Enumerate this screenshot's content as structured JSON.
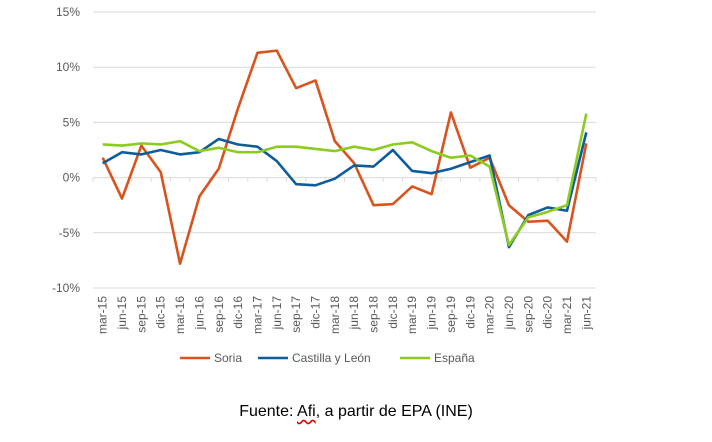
{
  "chart_data": {
    "type": "line",
    "title": "",
    "xlabel": "",
    "ylabel": "",
    "categories": [
      "mar-15",
      "jun-15",
      "sep-15",
      "dic-15",
      "mar-16",
      "jun-16",
      "sep-16",
      "dic-16",
      "mar-17",
      "jun-17",
      "sep-17",
      "dic-17",
      "mar-18",
      "jun-18",
      "sep-18",
      "dic-18",
      "mar-19",
      "jun-19",
      "sep-19",
      "dic-19",
      "mar-20",
      "jun-20",
      "sep-20",
      "dic-20",
      "mar-21",
      "jun-21"
    ],
    "ylim": [
      -10,
      15
    ],
    "yticks": [
      -10,
      -5,
      0,
      5,
      10,
      15
    ],
    "ytick_labels": [
      "-10%",
      "-5%",
      "0%",
      "5%",
      "10%",
      "15%"
    ],
    "grid": true,
    "legend_position": "bottom",
    "series": [
      {
        "name": "Soria",
        "color": "#D9531E",
        "values": [
          1.8,
          -1.9,
          2.9,
          0.5,
          -7.8,
          -1.7,
          0.8,
          6.3,
          11.3,
          11.5,
          8.1,
          8.8,
          3.3,
          1.3,
          -2.5,
          -2.4,
          -0.8,
          -1.5,
          5.9,
          0.9,
          1.8,
          -2.5,
          -4.0,
          -3.9,
          -5.8,
          3.1
        ]
      },
      {
        "name": "Castilla y León",
        "color": "#0F5C9A",
        "values": [
          1.3,
          2.3,
          2.1,
          2.5,
          2.1,
          2.3,
          3.5,
          3.0,
          2.8,
          1.5,
          -0.6,
          -0.7,
          -0.1,
          1.1,
          1.0,
          2.5,
          0.6,
          0.4,
          0.8,
          1.4,
          2.0,
          -6.3,
          -3.4,
          -2.7,
          -3.0,
          4.1
        ]
      },
      {
        "name": "España",
        "color": "#8CCB1F",
        "values": [
          3.0,
          2.9,
          3.1,
          3.0,
          3.3,
          2.4,
          2.7,
          2.3,
          2.3,
          2.8,
          2.8,
          2.6,
          2.4,
          2.8,
          2.5,
          3.0,
          3.2,
          2.4,
          1.8,
          2.0,
          1.0,
          -6.1,
          -3.6,
          -3.1,
          -2.5,
          5.8
        ]
      }
    ]
  },
  "source": {
    "prefix": "Fuente: ",
    "brand": "Afi",
    "suffix": ", a partir de EPA (INE)"
  }
}
